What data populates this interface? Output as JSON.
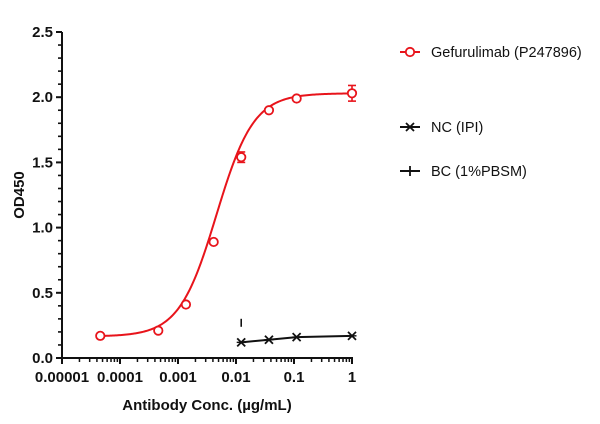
{
  "chart_data": {
    "type": "line",
    "title": "",
    "xlabel": "Antibody Conc. (µg/mL)",
    "ylabel": "OD450",
    "xscale": "log",
    "xlim": [
      1e-05,
      1
    ],
    "ylim": [
      0,
      2.5
    ],
    "x_tick_labels": [
      "0.00001",
      "0.0001",
      "0.001",
      "0.01",
      "0.1",
      "1"
    ],
    "y_tick_labels": [
      "0.0",
      "0.5",
      "1.0",
      "1.5",
      "2.0",
      "2.5"
    ],
    "grid": false,
    "legend_position": "right",
    "series": [
      {
        "name": "Gefurulimab (P247896)",
        "color": "#e8141b",
        "marker": "open-circle",
        "fit": "sigmoidal 4PL",
        "x": [
          4.57e-05,
          0.000457,
          0.00137,
          0.00412,
          0.0123,
          0.037,
          0.111,
          1
        ],
        "y": [
          0.17,
          0.21,
          0.41,
          0.89,
          1.54,
          1.9,
          1.99,
          2.03
        ],
        "error": [
          0.01,
          0.01,
          0.01,
          0.01,
          0.04,
          0.01,
          0.01,
          0.06
        ]
      },
      {
        "name": "NC (IPI)",
        "color": "#111111",
        "marker": "x-star",
        "x": [
          0.0123,
          0.037,
          0.111,
          1
        ],
        "y": [
          0.12,
          0.14,
          0.16,
          0.17
        ]
      },
      {
        "name": "BC (1%PBSM)",
        "color": "#111111",
        "marker": "plus",
        "x": [
          0.0123
        ],
        "y": [
          0.27
        ]
      }
    ]
  }
}
